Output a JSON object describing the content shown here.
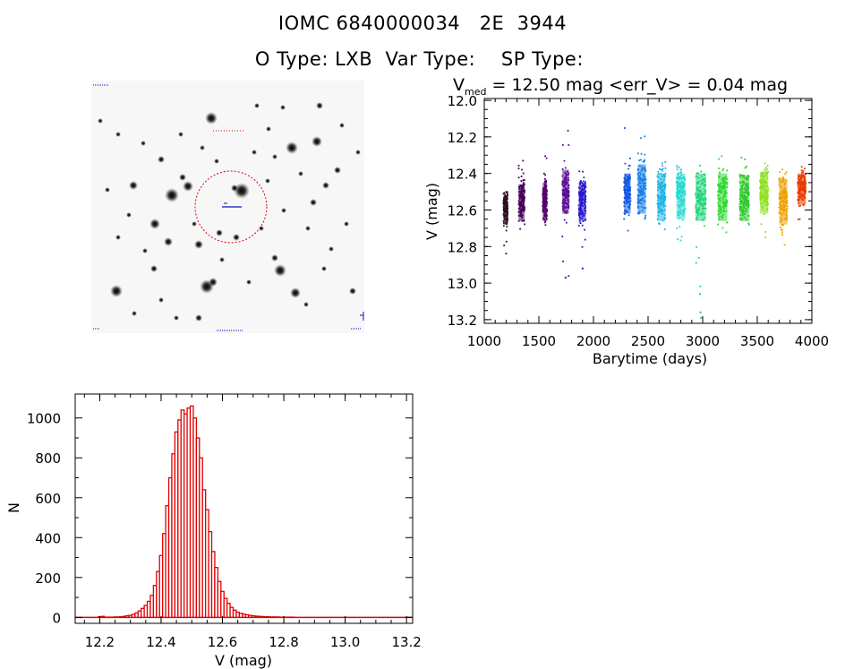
{
  "header": {
    "line1": "IOMC 6840000034   2E  3944",
    "o_type_label": "O Type:",
    "o_type_value": "LXB",
    "var_type_label": "Var Type:",
    "var_type_value": "",
    "sp_type_label": "SP Type:",
    "sp_type_value": ""
  },
  "lightcurve_header": {
    "v_prefix": "V",
    "v_subscript": "med",
    "v_text": " = 12.50 mag <err_V> = 0.04 mag"
  },
  "chart_data": [
    {
      "type": "scatter",
      "title": "",
      "xlabel": "Barytime (days)",
      "ylabel": "V (mag)",
      "xlim": [
        1000,
        4000
      ],
      "ylim": [
        13.22,
        11.99
      ],
      "y_inverted": true,
      "x_ticks": [
        1000,
        1500,
        2000,
        2500,
        3000,
        3500,
        4000
      ],
      "y_ticks": [
        "12.0",
        "12.2",
        "12.4",
        "12.6",
        "12.8",
        "13.0",
        "13.2"
      ],
      "grid": false,
      "groups": [
        {
          "x": 1195,
          "x_min": 1175,
          "x_max": 1215,
          "v_min": 12.45,
          "v_max": 12.84,
          "v_center": 12.59,
          "v_core_hi": 12.52,
          "v_core_lo": 12.68,
          "color": "#2a0f22"
        },
        {
          "x": 1340,
          "x_min": 1315,
          "x_max": 1370,
          "v_min": 12.33,
          "v_max": 12.74,
          "v_center": 12.55,
          "v_core_hi": 12.46,
          "v_core_lo": 12.66,
          "color": "#46005a"
        },
        {
          "x": 1555,
          "x_min": 1535,
          "x_max": 1575,
          "v_min": 12.3,
          "v_max": 12.71,
          "v_center": 12.55,
          "v_core_hi": 12.45,
          "v_core_lo": 12.66,
          "color": "#55006e"
        },
        {
          "x": 1740,
          "x_min": 1715,
          "x_max": 1775,
          "v_min": 12.13,
          "v_max": 12.97,
          "v_center": 12.5,
          "v_core_hi": 12.38,
          "v_core_lo": 12.62,
          "color": "#5a0c96"
        },
        {
          "x": 1890,
          "x_min": 1865,
          "x_max": 1930,
          "v_min": 12.31,
          "v_max": 12.92,
          "v_center": 12.55,
          "v_core_hi": 12.45,
          "v_core_lo": 12.66,
          "color": "#2818cc"
        },
        {
          "x": 2310,
          "x_min": 2280,
          "x_max": 2340,
          "v_min": 12.15,
          "v_max": 12.72,
          "v_center": 12.5,
          "v_core_hi": 12.4,
          "v_core_lo": 12.62,
          "color": "#1458e0"
        },
        {
          "x": 2440,
          "x_min": 2405,
          "x_max": 2480,
          "v_min": 12.17,
          "v_max": 12.68,
          "v_center": 12.47,
          "v_core_hi": 12.35,
          "v_core_lo": 12.62,
          "color": "#1a80e8"
        },
        {
          "x": 2620,
          "x_min": 2585,
          "x_max": 2660,
          "v_min": 12.3,
          "v_max": 12.8,
          "v_center": 12.52,
          "v_core_hi": 12.4,
          "v_core_lo": 12.66,
          "color": "#1ab4e6"
        },
        {
          "x": 2800,
          "x_min": 2760,
          "x_max": 2840,
          "v_min": 12.3,
          "v_max": 12.78,
          "v_center": 12.51,
          "v_core_hi": 12.4,
          "v_core_lo": 12.65,
          "color": "#22d8d2"
        },
        {
          "x": 2980,
          "x_min": 2935,
          "x_max": 3030,
          "v_min": 12.31,
          "v_max": 13.2,
          "v_center": 12.52,
          "v_core_hi": 12.4,
          "v_core_lo": 12.66,
          "color": "#22d47a"
        },
        {
          "x": 3180,
          "x_min": 3140,
          "x_max": 3225,
          "v_min": 12.3,
          "v_max": 12.75,
          "v_center": 12.52,
          "v_core_hi": 12.4,
          "v_core_lo": 12.66,
          "color": "#30d830"
        },
        {
          "x": 3380,
          "x_min": 3340,
          "x_max": 3425,
          "v_min": 12.3,
          "v_max": 12.78,
          "v_center": 12.53,
          "v_core_hi": 12.41,
          "v_core_lo": 12.66,
          "color": "#28c828"
        },
        {
          "x": 3560,
          "x_min": 3525,
          "x_max": 3600,
          "v_min": 12.3,
          "v_max": 12.76,
          "v_center": 12.5,
          "v_core_hi": 12.39,
          "v_core_lo": 12.62,
          "color": "#90e020"
        },
        {
          "x": 3735,
          "x_min": 3700,
          "x_max": 3775,
          "v_min": 12.36,
          "v_max": 12.81,
          "v_center": 12.55,
          "v_core_hi": 12.43,
          "v_core_lo": 12.68,
          "color": "#f0a000"
        },
        {
          "x": 3910,
          "x_min": 3870,
          "x_max": 3945,
          "v_min": 12.35,
          "v_max": 12.66,
          "v_center": 12.48,
          "v_core_hi": 12.4,
          "v_core_lo": 12.57,
          "color": "#e83a00"
        }
      ],
      "outliers": [
        {
          "x": 2975,
          "v": 13.06,
          "color": "#22d47a"
        },
        {
          "x": 2980,
          "v": 13.16,
          "color": "#22d47a"
        },
        {
          "x": 2985,
          "v": 13.19,
          "color": "#22d47a"
        },
        {
          "x": 1745,
          "v": 12.97,
          "color": "#5a0c96"
        },
        {
          "x": 1900,
          "v": 12.92,
          "color": "#2818cc"
        }
      ]
    },
    {
      "type": "bar",
      "title": "",
      "xlabel": "V (mag)",
      "ylabel": "N",
      "xlim": [
        12.12,
        13.22
      ],
      "ylim": [
        -30,
        1120
      ],
      "x_ticks": [
        "12.2",
        "12.4",
        "12.6",
        "12.8",
        "13.0",
        "13.2"
      ],
      "y_ticks": [
        "0",
        "200",
        "400",
        "600",
        "800",
        "1000"
      ],
      "bin_width": 0.01,
      "bins": [
        {
          "v": 12.15,
          "n": 0
        },
        {
          "v": 12.16,
          "n": 0
        },
        {
          "v": 12.17,
          "n": 0
        },
        {
          "v": 12.18,
          "n": 0
        },
        {
          "v": 12.19,
          "n": 0
        },
        {
          "v": 12.2,
          "n": 3
        },
        {
          "v": 12.21,
          "n": 5
        },
        {
          "v": 12.22,
          "n": 1
        },
        {
          "v": 12.23,
          "n": 1
        },
        {
          "v": 12.24,
          "n": 1
        },
        {
          "v": 12.25,
          "n": 2
        },
        {
          "v": 12.26,
          "n": 2
        },
        {
          "v": 12.27,
          "n": 3
        },
        {
          "v": 12.28,
          "n": 5
        },
        {
          "v": 12.29,
          "n": 8
        },
        {
          "v": 12.3,
          "n": 10
        },
        {
          "v": 12.31,
          "n": 15
        },
        {
          "v": 12.32,
          "n": 22
        },
        {
          "v": 12.33,
          "n": 32
        },
        {
          "v": 12.34,
          "n": 45
        },
        {
          "v": 12.35,
          "n": 60
        },
        {
          "v": 12.36,
          "n": 80
        },
        {
          "v": 12.37,
          "n": 110
        },
        {
          "v": 12.38,
          "n": 160
        },
        {
          "v": 12.39,
          "n": 230
        },
        {
          "v": 12.4,
          "n": 310
        },
        {
          "v": 12.41,
          "n": 420
        },
        {
          "v": 12.42,
          "n": 560
        },
        {
          "v": 12.43,
          "n": 700
        },
        {
          "v": 12.44,
          "n": 820
        },
        {
          "v": 12.45,
          "n": 930
        },
        {
          "v": 12.46,
          "n": 990
        },
        {
          "v": 12.47,
          "n": 1040
        },
        {
          "v": 12.48,
          "n": 1020
        },
        {
          "v": 12.49,
          "n": 1050
        },
        {
          "v": 12.5,
          "n": 1060
        },
        {
          "v": 12.51,
          "n": 1000
        },
        {
          "v": 12.52,
          "n": 900
        },
        {
          "v": 12.53,
          "n": 800
        },
        {
          "v": 12.54,
          "n": 640
        },
        {
          "v": 12.55,
          "n": 540
        },
        {
          "v": 12.56,
          "n": 430
        },
        {
          "v": 12.57,
          "n": 330
        },
        {
          "v": 12.58,
          "n": 250
        },
        {
          "v": 12.59,
          "n": 180
        },
        {
          "v": 12.6,
          "n": 130
        },
        {
          "v": 12.61,
          "n": 95
        },
        {
          "v": 12.62,
          "n": 70
        },
        {
          "v": 12.63,
          "n": 50
        },
        {
          "v": 12.64,
          "n": 36
        },
        {
          "v": 12.65,
          "n": 26
        },
        {
          "v": 12.66,
          "n": 20
        },
        {
          "v": 12.67,
          "n": 16
        },
        {
          "v": 12.68,
          "n": 13
        },
        {
          "v": 12.69,
          "n": 10
        },
        {
          "v": 12.7,
          "n": 8
        },
        {
          "v": 12.71,
          "n": 6
        },
        {
          "v": 12.72,
          "n": 5
        },
        {
          "v": 12.73,
          "n": 4
        },
        {
          "v": 12.74,
          "n": 3
        },
        {
          "v": 12.75,
          "n": 3
        },
        {
          "v": 12.76,
          "n": 2
        },
        {
          "v": 12.77,
          "n": 2
        },
        {
          "v": 12.78,
          "n": 2
        },
        {
          "v": 12.79,
          "n": 1
        },
        {
          "v": 12.8,
          "n": 1
        },
        {
          "v": 12.81,
          "n": 1
        },
        {
          "v": 12.82,
          "n": 1
        },
        {
          "v": 12.83,
          "n": 1
        },
        {
          "v": 12.84,
          "n": 0
        }
      ],
      "bar_color": "#e00000"
    }
  ],
  "finder_chart": {
    "circle_color": "#e00000",
    "marker_color": "#1010c0",
    "corner_label_color": "#1010c0"
  }
}
